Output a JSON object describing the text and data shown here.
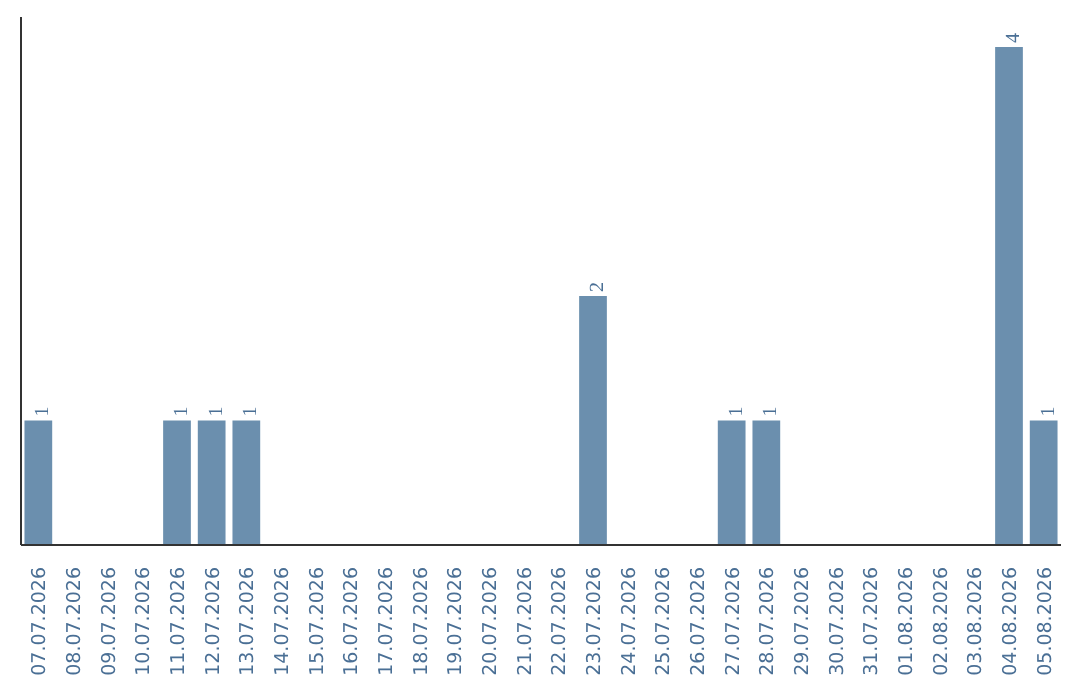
{
  "chart_data": {
    "type": "bar",
    "categories": [
      "07.07.2026",
      "08.07.2026",
      "09.07.2026",
      "10.07.2026",
      "11.07.2026",
      "12.07.2026",
      "13.07.2026",
      "14.07.2026",
      "15.07.2026",
      "16.07.2026",
      "17.07.2026",
      "18.07.2026",
      "19.07.2026",
      "20.07.2026",
      "21.07.2026",
      "22.07.2026",
      "23.07.2026",
      "24.07.2026",
      "25.07.2026",
      "26.07.2026",
      "27.07.2026",
      "28.07.2026",
      "29.07.2026",
      "30.07.2026",
      "31.07.2026",
      "01.08.2026",
      "02.08.2026",
      "03.08.2026",
      "04.08.2026",
      "05.08.2026"
    ],
    "values": [
      1,
      0,
      0,
      0,
      1,
      1,
      1,
      0,
      0,
      0,
      0,
      0,
      0,
      0,
      0,
      0,
      2,
      0,
      0,
      0,
      1,
      1,
      0,
      0,
      0,
      0,
      0,
      0,
      4,
      1
    ],
    "value_labels": [
      "1",
      null,
      null,
      null,
      "1",
      "1",
      "1",
      null,
      null,
      null,
      null,
      null,
      null,
      null,
      null,
      null,
      "2",
      null,
      null,
      null,
      "1",
      "1",
      null,
      null,
      null,
      null,
      null,
      null,
      "4",
      "1"
    ],
    "color": "#6b8fae"
  }
}
